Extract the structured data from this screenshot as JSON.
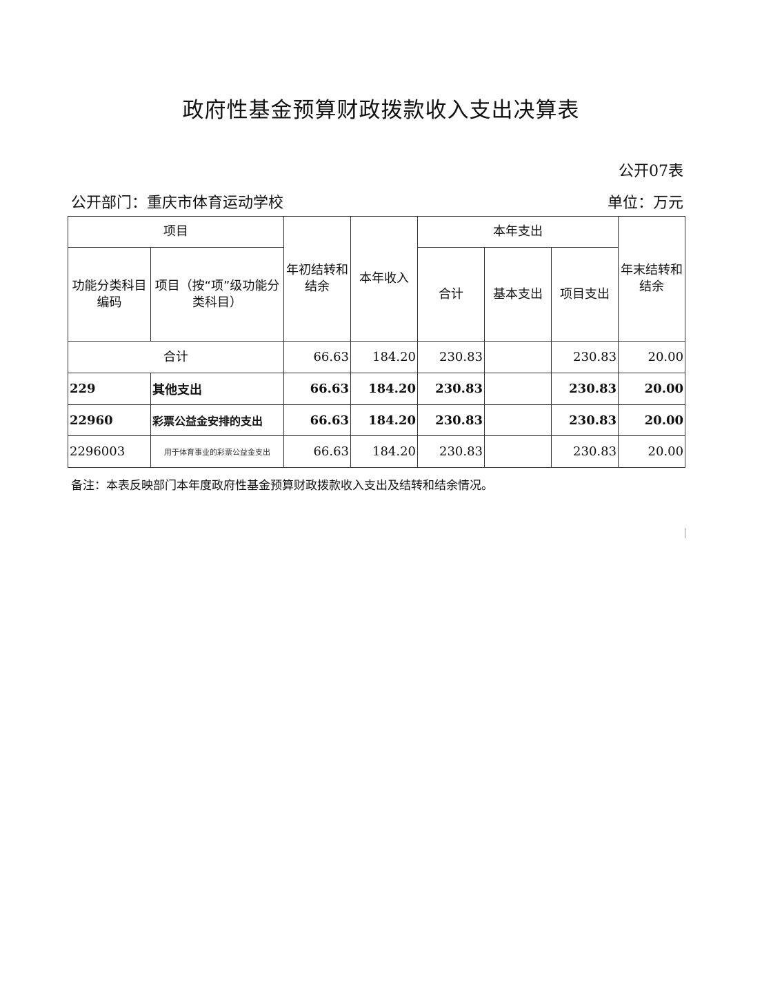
{
  "title": "政府性基金预算财政拨款收入支出决算表",
  "table_no": "公开07表",
  "department": "公开部门：重庆市体育运动学校",
  "unit": "单位：万元",
  "headers": {
    "item": "项目",
    "code": "功能分类科目编码",
    "item_name": "项目（按“项”级功能分类科目）",
    "opening_balance": "年初结转和结余",
    "income": "本年收入",
    "expenditure": "本年支出",
    "exp_total": "合计",
    "exp_basic": "基本支出",
    "exp_project": "项目支出",
    "closing_balance": "年末结转和结余"
  },
  "total_row": {
    "label": "合计",
    "opening": "66.63",
    "income": "184.20",
    "exp_total": "230.83",
    "exp_basic": "",
    "exp_project": "230.83",
    "closing": "20.00"
  },
  "rows": [
    {
      "code": "229",
      "name": "其他支出",
      "opening": "66.63",
      "income": "184.20",
      "exp_total": "230.83",
      "exp_basic": "",
      "exp_project": "230.83",
      "closing": "20.00"
    },
    {
      "code": "22960",
      "name": "彩票公益金安排的支出",
      "opening": "66.63",
      "income": "184.20",
      "exp_total": "230.83",
      "exp_basic": "",
      "exp_project": "230.83",
      "closing": "20.00"
    },
    {
      "code": "2296003",
      "name": "用于体育事业的彩票公益金支出",
      "opening": "66.63",
      "income": "184.20",
      "exp_total": "230.83",
      "exp_basic": "",
      "exp_project": "230.83",
      "closing": "20.00"
    }
  ],
  "note": "备注：本表反映部门本年度政府性基金预算财政拨款收入支出及结转和结余情况。"
}
